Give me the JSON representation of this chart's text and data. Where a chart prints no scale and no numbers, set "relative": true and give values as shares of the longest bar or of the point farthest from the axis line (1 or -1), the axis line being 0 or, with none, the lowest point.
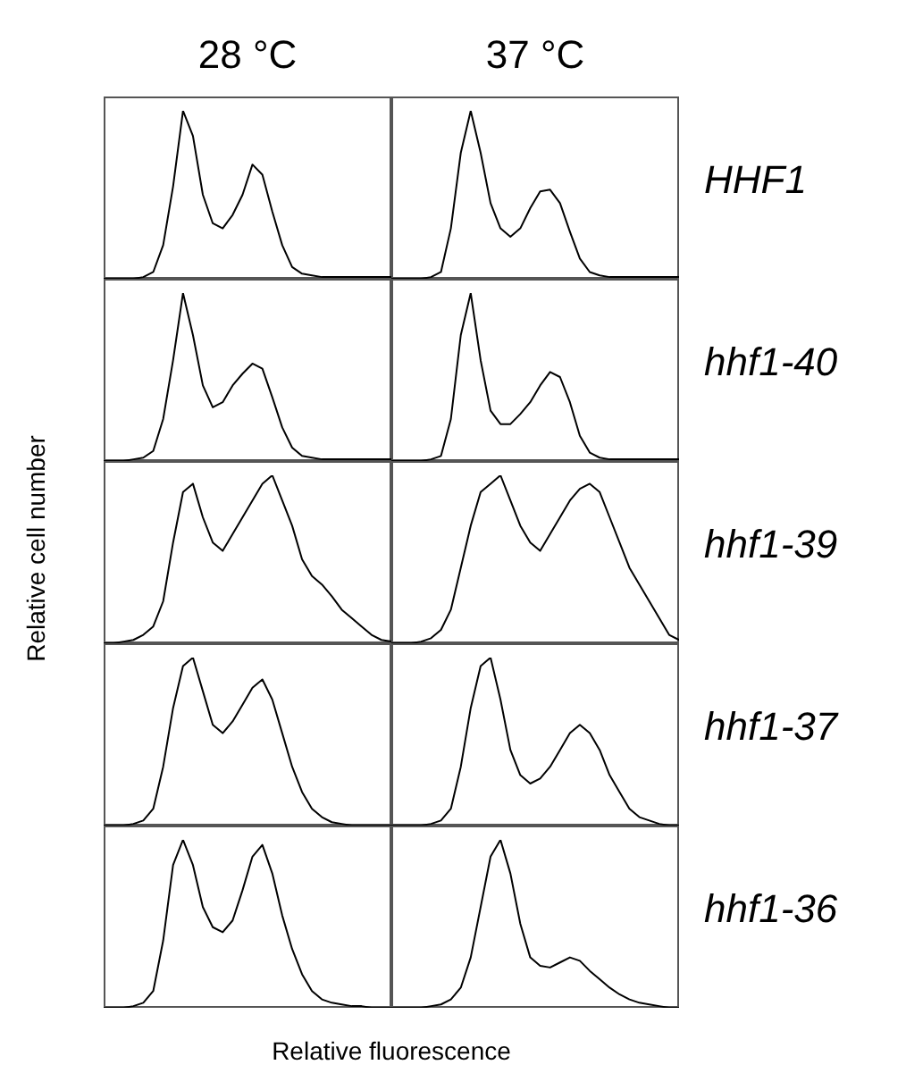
{
  "chart_data": [
    {
      "type": "line",
      "title": "28 °C",
      "relative": true,
      "color": "#000000",
      "categories": [
        null,
        null,
        null,
        null,
        null,
        null,
        null,
        null,
        null,
        null,
        null,
        null,
        null,
        null,
        null,
        null,
        null,
        null,
        null,
        null,
        null,
        null,
        null,
        null,
        null,
        null,
        null,
        null,
        null,
        null
      ],
      "values": [
        0,
        0,
        0,
        0,
        0.01,
        0.04,
        0.2,
        0.55,
        1,
        0.85,
        0.5,
        0.33,
        0.3,
        0.38,
        0.5,
        0.68,
        0.62,
        0.4,
        0.2,
        0.07,
        0.03,
        0.02,
        0.01,
        0.01,
        0.01,
        0.01,
        0.01,
        0.01,
        0.01,
        0.01
      ]
    },
    {
      "type": "line",
      "title": "37 °C",
      "annotations": [
        "HHF1"
      ],
      "relative": true,
      "color": "#000000",
      "categories": [
        null,
        null,
        null,
        null,
        null,
        null,
        null,
        null,
        null,
        null,
        null,
        null,
        null,
        null,
        null,
        null,
        null,
        null,
        null,
        null,
        null,
        null,
        null,
        null,
        null,
        null,
        null,
        null,
        null,
        null
      ],
      "values": [
        0,
        0,
        0,
        0,
        0.01,
        0.04,
        0.3,
        0.75,
        1,
        0.75,
        0.45,
        0.3,
        0.25,
        0.3,
        0.42,
        0.52,
        0.53,
        0.45,
        0.28,
        0.12,
        0.04,
        0.02,
        0.01,
        0.01,
        0.01,
        0.01,
        0.01,
        0.01,
        0.01,
        0.01
      ]
    },
    {
      "type": "line",
      "relative": true,
      "color": "#000000",
      "categories": [
        null,
        null,
        null,
        null,
        null,
        null,
        null,
        null,
        null,
        null,
        null,
        null,
        null,
        null,
        null,
        null,
        null,
        null,
        null,
        null,
        null,
        null,
        null,
        null,
        null,
        null,
        null,
        null,
        null,
        null
      ],
      "values": [
        0,
        0,
        0,
        0.01,
        0.02,
        0.06,
        0.25,
        0.6,
        1,
        0.75,
        0.45,
        0.32,
        0.35,
        0.45,
        0.52,
        0.58,
        0.55,
        0.38,
        0.2,
        0.08,
        0.03,
        0.02,
        0.01,
        0.01,
        0.01,
        0.01,
        0.01,
        0.01,
        0.01,
        0.01
      ]
    },
    {
      "type": "line",
      "annotations": [
        "hhf1-40"
      ],
      "relative": true,
      "color": "#000000",
      "categories": [
        null,
        null,
        null,
        null,
        null,
        null,
        null,
        null,
        null,
        null,
        null,
        null,
        null,
        null,
        null,
        null,
        null,
        null,
        null,
        null,
        null,
        null,
        null,
        null,
        null,
        null,
        null,
        null,
        null,
        null
      ],
      "values": [
        0,
        0,
        0,
        0,
        0.01,
        0.03,
        0.25,
        0.75,
        1,
        0.6,
        0.3,
        0.22,
        0.22,
        0.28,
        0.35,
        0.45,
        0.53,
        0.5,
        0.35,
        0.15,
        0.05,
        0.02,
        0.01,
        0.01,
        0.01,
        0.01,
        0.01,
        0.01,
        0.01,
        0.01
      ]
    },
    {
      "type": "line",
      "ylabel": "Relative cell number",
      "relative": true,
      "color": "#000000",
      "categories": [
        null,
        null,
        null,
        null,
        null,
        null,
        null,
        null,
        null,
        null,
        null,
        null,
        null,
        null,
        null,
        null,
        null,
        null,
        null,
        null,
        null,
        null,
        null,
        null,
        null,
        null,
        null,
        null,
        null,
        null
      ],
      "values": [
        0,
        0,
        0.01,
        0.02,
        0.05,
        0.1,
        0.25,
        0.6,
        0.9,
        0.95,
        0.75,
        0.6,
        0.55,
        0.65,
        0.75,
        0.85,
        0.95,
        1,
        0.85,
        0.7,
        0.5,
        0.4,
        0.35,
        0.28,
        0.2,
        0.15,
        0.1,
        0.05,
        0.02,
        0.01
      ]
    },
    {
      "type": "line",
      "annotations": [
        "hhf1-39"
      ],
      "relative": true,
      "color": "#000000",
      "categories": [
        null,
        null,
        null,
        null,
        null,
        null,
        null,
        null,
        null,
        null,
        null,
        null,
        null,
        null,
        null,
        null,
        null,
        null,
        null,
        null,
        null,
        null,
        null,
        null,
        null,
        null,
        null,
        null,
        null,
        null
      ],
      "values": [
        0,
        0,
        0,
        0.01,
        0.03,
        0.08,
        0.2,
        0.45,
        0.7,
        0.9,
        0.95,
        1,
        0.85,
        0.7,
        0.6,
        0.55,
        0.65,
        0.75,
        0.85,
        0.92,
        0.95,
        0.9,
        0.75,
        0.6,
        0.45,
        0.35,
        0.25,
        0.15,
        0.05,
        0.02
      ]
    },
    {
      "type": "line",
      "relative": true,
      "color": "#000000",
      "categories": [
        null,
        null,
        null,
        null,
        null,
        null,
        null,
        null,
        null,
        null,
        null,
        null,
        null,
        null,
        null,
        null,
        null,
        null,
        null,
        null,
        null,
        null,
        null,
        null,
        null,
        null,
        null,
        null,
        null,
        null
      ],
      "values": [
        0,
        0,
        0,
        0.01,
        0.03,
        0.1,
        0.35,
        0.7,
        0.95,
        1,
        0.8,
        0.6,
        0.55,
        0.62,
        0.72,
        0.82,
        0.87,
        0.75,
        0.55,
        0.35,
        0.2,
        0.1,
        0.05,
        0.02,
        0.01,
        0,
        0,
        0,
        0,
        0
      ]
    },
    {
      "type": "line",
      "annotations": [
        "hhf1-37"
      ],
      "relative": true,
      "color": "#000000",
      "categories": [
        null,
        null,
        null,
        null,
        null,
        null,
        null,
        null,
        null,
        null,
        null,
        null,
        null,
        null,
        null,
        null,
        null,
        null,
        null,
        null,
        null,
        null,
        null,
        null,
        null,
        null,
        null,
        null,
        null,
        null
      ],
      "values": [
        0,
        0,
        0,
        0,
        0.01,
        0.03,
        0.1,
        0.35,
        0.7,
        0.95,
        1,
        0.75,
        0.45,
        0.3,
        0.25,
        0.28,
        0.35,
        0.45,
        0.55,
        0.6,
        0.55,
        0.45,
        0.3,
        0.2,
        0.1,
        0.05,
        0.03,
        0.01,
        0,
        0
      ]
    },
    {
      "type": "line",
      "xlabel": "Relative fluorescence",
      "relative": true,
      "color": "#000000",
      "categories": [
        null,
        null,
        null,
        null,
        null,
        null,
        null,
        null,
        null,
        null,
        null,
        null,
        null,
        null,
        null,
        null,
        null,
        null,
        null,
        null,
        null,
        null,
        null,
        null,
        null,
        null,
        null,
        null,
        null,
        null
      ],
      "values": [
        0,
        0,
        0,
        0.01,
        0.03,
        0.1,
        0.4,
        0.85,
        1,
        0.85,
        0.6,
        0.48,
        0.45,
        0.52,
        0.7,
        0.9,
        0.97,
        0.8,
        0.55,
        0.35,
        0.2,
        0.1,
        0.05,
        0.03,
        0.02,
        0.01,
        0.01,
        0,
        0,
        0
      ]
    },
    {
      "type": "line",
      "annotations": [
        "hhf1-36"
      ],
      "relative": true,
      "color": "#000000",
      "categories": [
        null,
        null,
        null,
        null,
        null,
        null,
        null,
        null,
        null,
        null,
        null,
        null,
        null,
        null,
        null,
        null,
        null,
        null,
        null,
        null,
        null,
        null,
        null,
        null,
        null,
        null,
        null,
        null,
        null,
        null
      ],
      "values": [
        0,
        0,
        0,
        0,
        0.01,
        0.02,
        0.05,
        0.12,
        0.3,
        0.6,
        0.9,
        1,
        0.8,
        0.5,
        0.3,
        0.25,
        0.24,
        0.27,
        0.3,
        0.28,
        0.22,
        0.17,
        0.12,
        0.08,
        0.05,
        0.03,
        0.02,
        0.01,
        0,
        0
      ]
    }
  ]
}
